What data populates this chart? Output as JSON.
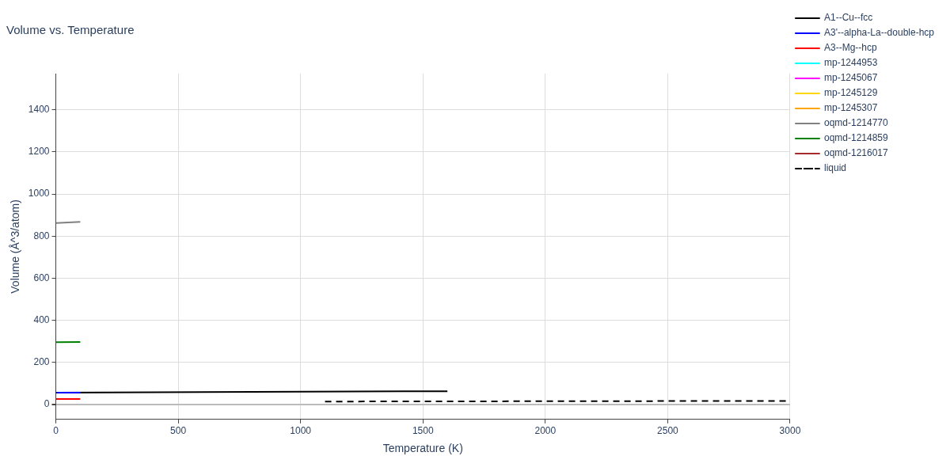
{
  "chart_data": {
    "type": "line",
    "title": "Volume vs. Temperature",
    "xlabel": "Temperature (K)",
    "ylabel": "Volume (Å^3/atom)",
    "xlim": [
      0,
      3000
    ],
    "xticks": [
      0,
      500,
      1000,
      1500,
      2000,
      2500,
      3000
    ],
    "ylim": [
      -70,
      1572
    ],
    "yticks": [
      0,
      200,
      400,
      600,
      800,
      1000,
      1200,
      1400
    ],
    "grid": true,
    "legend": "right",
    "marker": "none",
    "series": [
      {
        "name": "A1--Cu--fcc",
        "color": "#000000",
        "x": [
          0,
          1600
        ],
        "values": [
          57,
          64
        ]
      },
      {
        "name": "A3'--alpha-La--double-hcp",
        "color": "#0000ff",
        "x": [
          0,
          100
        ],
        "values": [
          57,
          57
        ]
      },
      {
        "name": "A3--Mg--hcp",
        "color": "#ff0000",
        "x": [
          0,
          100
        ],
        "values": [
          27,
          27
        ]
      },
      {
        "name": "mp-1244953",
        "color": "#00ffff"
      },
      {
        "name": "mp-1245067",
        "color": "#ff00ff"
      },
      {
        "name": "mp-1245129",
        "color": "#ffd700"
      },
      {
        "name": "mp-1245307",
        "color": "#ffa500"
      },
      {
        "name": "oqmd-1214770",
        "color": "#808080",
        "x": [
          0,
          100
        ],
        "values": [
          862,
          868
        ]
      },
      {
        "name": "oqmd-1214859",
        "color": "#008000",
        "x": [
          0,
          100
        ],
        "values": [
          297,
          298
        ]
      },
      {
        "name": "oqmd-1216017",
        "color": "#a52a2a"
      },
      {
        "name": "liquid",
        "color": "#000000",
        "line_style": "dashed",
        "x": [
          1100,
          3000
        ],
        "values": [
          15,
          18
        ]
      }
    ]
  }
}
